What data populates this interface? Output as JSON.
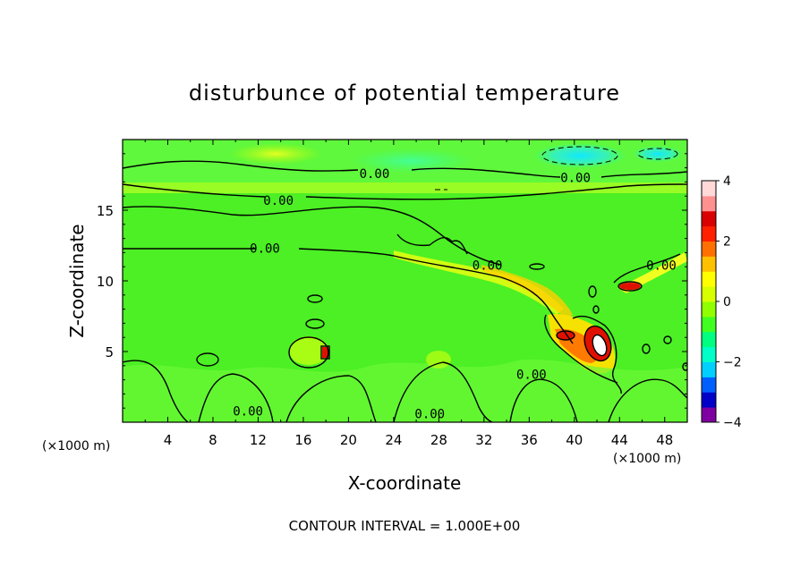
{
  "chart_data": {
    "type": "heatmap",
    "title": "disturbunce of potential temperature",
    "xlabel": "X-coordinate",
    "ylabel": "Z-coordinate",
    "x_unit_left": "(×1000 m)",
    "x_unit_right": "(×1000 m)",
    "xlim": [
      0,
      50
    ],
    "ylim": [
      0,
      20
    ],
    "x_ticks": [
      4,
      8,
      12,
      16,
      20,
      24,
      28,
      32,
      36,
      40,
      44,
      48
    ],
    "y_ticks": [
      5,
      10,
      15
    ],
    "colorbar": {
      "range": [
        -4,
        4
      ],
      "ticks": [
        -4,
        -2,
        0,
        2,
        4
      ],
      "colors": [
        "#7f00a0",
        "#0000c8",
        "#0060ff",
        "#00d0ff",
        "#00ffc8",
        "#00ff80",
        "#40ff20",
        "#90ff00",
        "#d8ff00",
        "#ffff00",
        "#ffc000",
        "#ff7000",
        "#ff2000",
        "#d80000",
        "#ff9090",
        "#ffd8d8"
      ]
    },
    "contour_labels": [
      {
        "text": "0.00",
        "x": 22.3,
        "y": 17.6
      },
      {
        "text": "0.00",
        "x": 13.8,
        "y": 15.7
      },
      {
        "text": "0.00",
        "x": 12.6,
        "y": 12.3
      },
      {
        "text": "0.00",
        "x": 40.1,
        "y": 17.3
      },
      {
        "text": "0.00",
        "x": 32.3,
        "y": 11.1
      },
      {
        "text": "0.00",
        "x": 47.7,
        "y": 11.1
      },
      {
        "text": "0.00",
        "x": 11.1,
        "y": 0.8
      },
      {
        "text": "0.00",
        "x": 27.2,
        "y": 0.6
      },
      {
        "text": "0.00",
        "x": 36.2,
        "y": 3.4
      }
    ],
    "footer": "CONTOUR INTERVAL = 1.000E+00"
  }
}
